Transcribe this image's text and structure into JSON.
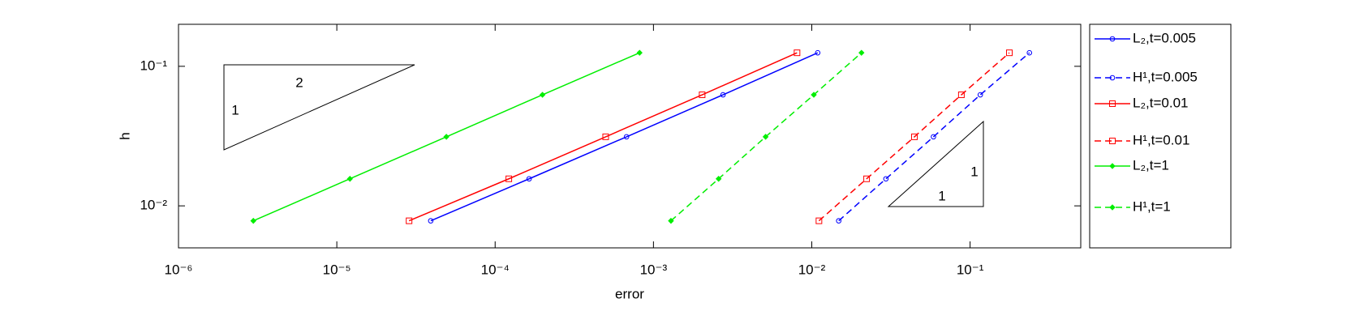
{
  "chart_data": {
    "type": "line",
    "x_label": "error",
    "y_label": "h",
    "xlog": true,
    "ylog": true,
    "xlim": [
      1e-06,
      0.5
    ],
    "ylim": [
      0.005,
      0.2
    ],
    "xticks": [
      {
        "value": 1e-06,
        "label": "10⁻⁶"
      },
      {
        "value": 1e-05,
        "label": "10⁻⁵"
      },
      {
        "value": 0.0001,
        "label": "10⁻⁴"
      },
      {
        "value": 0.001,
        "label": "10⁻³"
      },
      {
        "value": 0.01,
        "label": "10⁻²"
      },
      {
        "value": 0.1,
        "label": "10⁻¹"
      }
    ],
    "yticks": [
      {
        "value": 0.01,
        "label": "10⁻²"
      },
      {
        "value": 0.1,
        "label": "10⁻¹"
      }
    ],
    "grid": false,
    "legend": "outside-right",
    "annotations": [
      "2",
      "1",
      "1",
      "1"
    ],
    "series": [
      {
        "name": "L₂,t=0.005",
        "color": "#0000ff",
        "marker": "circle",
        "dashed": false,
        "x": [
          3.92e-05,
          0.000164,
          0.000676,
          0.00275,
          0.0109
        ],
        "values": [
          0.0078125,
          0.015625,
          0.03125,
          0.0625,
          0.125
        ]
      },
      {
        "name": "H¹,t=0.005",
        "color": "#0000ff",
        "marker": "circle",
        "dashed": true,
        "x": [
          0.0148,
          0.0294,
          0.0587,
          0.116,
          0.237
        ],
        "values": [
          0.0078125,
          0.015625,
          0.03125,
          0.0625,
          0.125
        ]
      },
      {
        "name": "L₂,t=0.01",
        "color": "#ff0000",
        "marker": "square",
        "dashed": false,
        "x": [
          2.86e-05,
          0.000122,
          0.000499,
          0.00203,
          0.00807
        ],
        "values": [
          0.0078125,
          0.015625,
          0.03125,
          0.0625,
          0.125
        ]
      },
      {
        "name": "H¹,t=0.01",
        "color": "#ff0000",
        "marker": "square",
        "dashed": true,
        "x": [
          0.0111,
          0.0222,
          0.0445,
          0.0881,
          0.177
        ],
        "values": [
          0.0078125,
          0.015625,
          0.03125,
          0.0625,
          0.125
        ]
      },
      {
        "name": "L₂,t=1",
        "color": "#00ee00",
        "marker": "diamond",
        "dashed": false,
        "x": [
          2.97e-06,
          1.21e-05,
          4.92e-05,
          0.000199,
          0.000817
        ],
        "values": [
          0.0078125,
          0.015625,
          0.03125,
          0.0625,
          0.125
        ]
      },
      {
        "name": "H¹,t=1",
        "color": "#00ee00",
        "marker": "diamond",
        "dashed": true,
        "x": [
          0.00129,
          0.00258,
          0.00511,
          0.0103,
          0.0206
        ],
        "values": [
          0.0078125,
          0.015625,
          0.03125,
          0.0625,
          0.125
        ]
      }
    ]
  }
}
